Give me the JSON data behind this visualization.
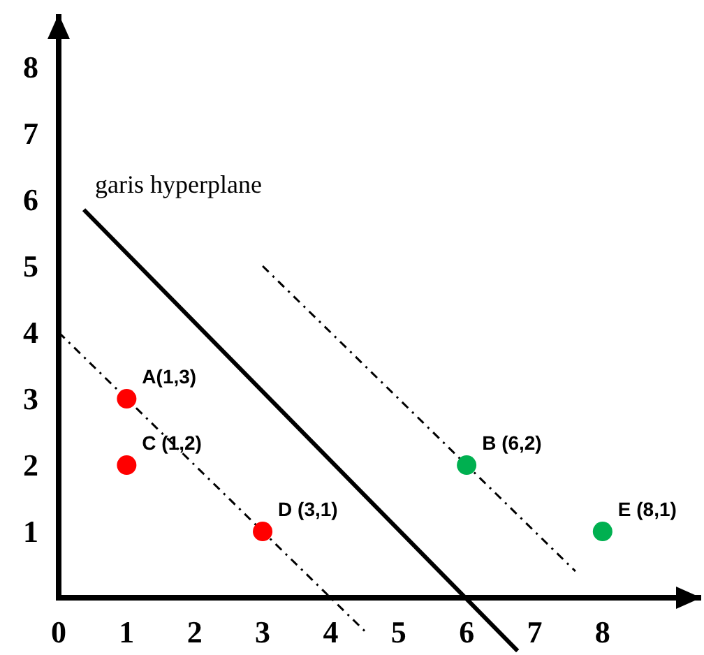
{
  "chart_data": {
    "type": "scatter",
    "xlim": [
      0,
      9.45
    ],
    "ylim": [
      -0.85,
      8.8
    ],
    "xticks": [
      0,
      1,
      2,
      3,
      4,
      5,
      6,
      7,
      8
    ],
    "yticks": [
      1,
      2,
      3,
      4,
      5,
      6,
      7,
      8
    ],
    "grid": false,
    "marker": "circle",
    "series": [
      {
        "type": "line",
        "color": "#000000",
        "line_style": "solid",
        "marker": "none",
        "x": [
          0.37,
          6.75
        ],
        "values": [
          5.85,
          -0.8
        ]
      },
      {
        "type": "line",
        "color": "#000000",
        "line_style": "dashed",
        "marker": "none",
        "x": [
          0,
          4.5
        ],
        "values": [
          4,
          -0.5
        ]
      },
      {
        "type": "line",
        "color": "#000000",
        "line_style": "dashed",
        "marker": "none",
        "x": [
          3,
          7.6
        ],
        "values": [
          5,
          0.4
        ]
      },
      {
        "type": "scatter",
        "color": "#ff0000",
        "x": [
          1,
          1,
          3
        ],
        "values": [
          3,
          2,
          1
        ]
      },
      {
        "type": "scatter",
        "color": "#00b050",
        "x": [
          6,
          8
        ],
        "values": [
          2,
          1
        ]
      }
    ],
    "annotations": [
      {
        "text": "garis hyperplane",
        "x": 0.37,
        "y": 5.85
      },
      {
        "text": "A(1,3)",
        "x": 1,
        "y": 3
      },
      {
        "text": "C (1,2)",
        "x": 1,
        "y": 2
      },
      {
        "text": "D (3,1)",
        "x": 3,
        "y": 1
      },
      {
        "text": "B (6,2)",
        "x": 6,
        "y": 2
      },
      {
        "text": "E (8,1)",
        "x": 8,
        "y": 1
      }
    ]
  }
}
